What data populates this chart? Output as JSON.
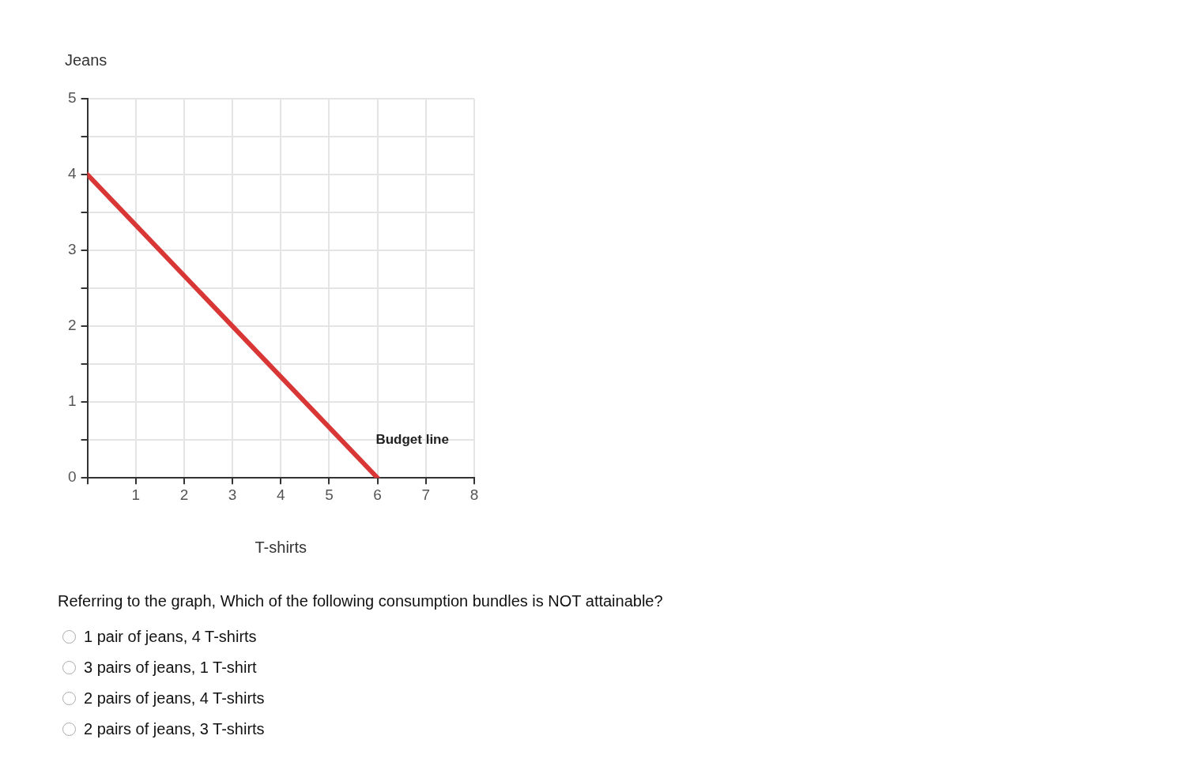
{
  "chart_data": {
    "type": "line",
    "xlabel": "T-shirts",
    "ylabel": "Jeans",
    "x": [
      0,
      6
    ],
    "series": [
      {
        "color": "#d93636",
        "values": [
          4,
          0
        ]
      }
    ],
    "xlim": [
      0,
      8
    ],
    "xticks": [
      {
        "value": 0,
        "label": null
      },
      1,
      2,
      3,
      4,
      5,
      6,
      7,
      8
    ],
    "ylim": [
      0,
      5
    ],
    "yticks": [
      0,
      {
        "value": 0.5,
        "label": null
      },
      1,
      {
        "value": 1.5,
        "label": null
      },
      2,
      {
        "value": 2.5,
        "label": null
      },
      3,
      {
        "value": 3.5,
        "label": null
      },
      4,
      {
        "value": 4.5,
        "label": null
      },
      5
    ],
    "grid": true,
    "legend": false,
    "marker": "none",
    "line_style": "solid",
    "annotations": [
      "Budget line",
      "Referring to the graph, Which of the following consumption bundles is NOT attainable?",
      "1 pair of jeans, 4 T-shirts",
      "3 pairs of jeans, 1 T-shirt",
      "2 pairs of jeans, 4 T-shirts",
      "2 pairs of jeans, 3 T-shirts"
    ]
  }
}
